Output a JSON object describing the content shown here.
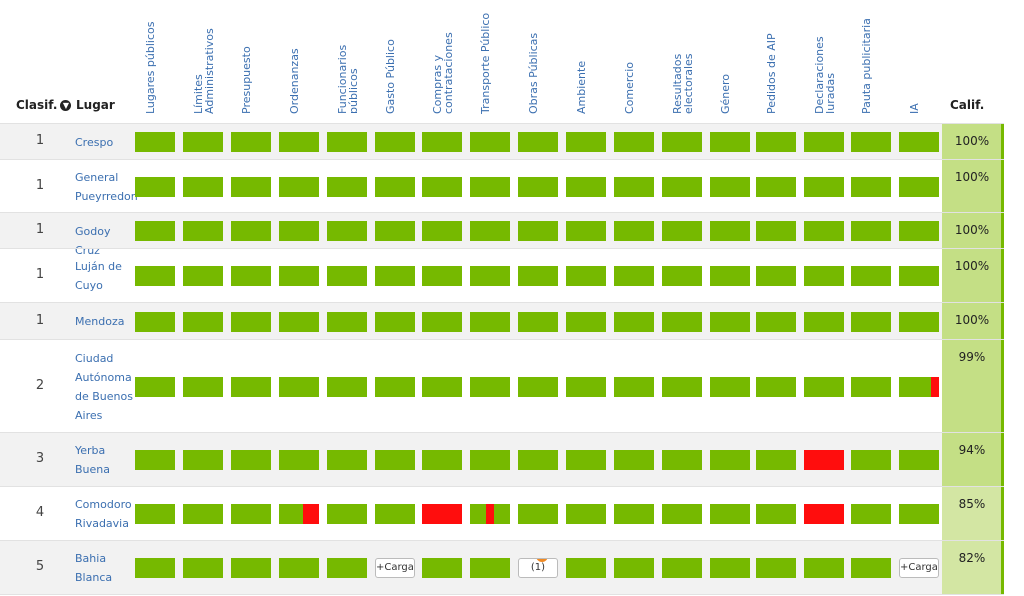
{
  "header": {
    "clasif": "Clasif.",
    "lugar": "Lugar",
    "calif": "Calif.",
    "columns": [
      "Lugares públicos",
      "Límites Administrativos",
      "Presupuesto",
      "Ordenanzas",
      "Funcionarios públicos",
      "Gasto Público",
      "Compras y contrataciones",
      "Transporte Público",
      "Obras Públicas",
      "Ambiente",
      "Comercio",
      "Resultados electorales",
      "Género",
      "Pedidos de AIP",
      "Declaraciones Juradas",
      "Pauta publicitaria",
      "IA"
    ]
  },
  "colors": {
    "ok": "#76b900",
    "bad": "#ff0d0d",
    "calif_high": "#c4df85",
    "calif_mid": "#d3e6a3",
    "link": "#3b6fb0"
  },
  "rows": [
    {
      "rank": "1",
      "place": "Crespo",
      "score": "100%",
      "cells": [
        "ok",
        "ok",
        "ok",
        "ok",
        "ok",
        "ok",
        "ok",
        "ok",
        "ok",
        "ok",
        "ok",
        "ok",
        "ok",
        "ok",
        "ok",
        "ok",
        "ok"
      ]
    },
    {
      "rank": "1",
      "place": "General Pueyrredon",
      "score": "100%",
      "cells": [
        "ok",
        "ok",
        "ok",
        "ok",
        "ok",
        "ok",
        "ok",
        "ok",
        "ok",
        "ok",
        "ok",
        "ok",
        "ok",
        "ok",
        "ok",
        "ok",
        "ok"
      ]
    },
    {
      "rank": "1",
      "place": "Godoy Cruz",
      "score": "100%",
      "cells": [
        "ok",
        "ok",
        "ok",
        "ok",
        "ok",
        "ok",
        "ok",
        "ok",
        "ok",
        "ok",
        "ok",
        "ok",
        "ok",
        "ok",
        "ok",
        "ok",
        "ok"
      ]
    },
    {
      "rank": "1",
      "place": "Luján de Cuyo",
      "score": "100%",
      "cells": [
        "ok",
        "ok",
        "ok",
        "ok",
        "ok",
        "ok",
        "ok",
        "ok",
        "ok",
        "ok",
        "ok",
        "ok",
        "ok",
        "ok",
        "ok",
        "ok",
        "ok"
      ]
    },
    {
      "rank": "1",
      "place": "Mendoza",
      "score": "100%",
      "cells": [
        "ok",
        "ok",
        "ok",
        "ok",
        "ok",
        "ok",
        "ok",
        "ok",
        "ok",
        "ok",
        "ok",
        "ok",
        "ok",
        "ok",
        "ok",
        "ok",
        "ok"
      ]
    },
    {
      "rank": "2",
      "place": "Ciudad Autónoma de Buenos Aires",
      "score": "99%",
      "cells": [
        "ok",
        "ok",
        "ok",
        "ok",
        "ok",
        "ok",
        "ok",
        "ok",
        "ok",
        "ok",
        "ok",
        "ok",
        "ok",
        "ok",
        "ok",
        "ok",
        "bad-right-small"
      ]
    },
    {
      "rank": "3",
      "place": "Yerba Buena",
      "score": "94%",
      "cells": [
        "ok",
        "ok",
        "ok",
        "ok",
        "ok",
        "ok",
        "ok",
        "ok",
        "ok",
        "ok",
        "ok",
        "ok",
        "ok",
        "ok",
        "bad",
        "ok",
        "ok"
      ]
    },
    {
      "rank": "4",
      "place": "Comodoro Rivadavia",
      "score": "85%",
      "cells": [
        "ok",
        "ok",
        "ok",
        "bad-right-half",
        "ok",
        "ok",
        "bad",
        "bad-mid",
        "ok",
        "ok",
        "ok",
        "ok",
        "ok",
        "ok",
        "bad",
        "ok",
        "ok"
      ]
    },
    {
      "rank": "5",
      "place": "Bahia Blanca",
      "score": "82%",
      "cells": [
        "ok",
        "ok",
        "ok",
        "ok",
        "ok",
        "cargar",
        "ok",
        "ok",
        "count",
        "ok",
        "ok",
        "ok",
        "ok",
        "ok",
        "ok",
        "ok",
        "cargar"
      ]
    }
  ],
  "buttons": {
    "cargar": "+Cargar",
    "count": "(1)",
    "count_badge": "1"
  }
}
